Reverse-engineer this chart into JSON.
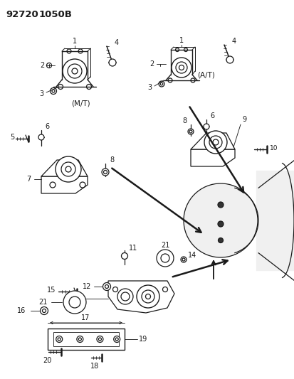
{
  "title_part1": "92720",
  "title_part2": "1050B",
  "bg": "#f5f5f5",
  "fg": "#1a1a1a",
  "fig_w": 4.14,
  "fig_h": 5.33,
  "dpi": 100,
  "labels": {
    "mt": "(M/T)",
    "at": "(A/T)"
  }
}
